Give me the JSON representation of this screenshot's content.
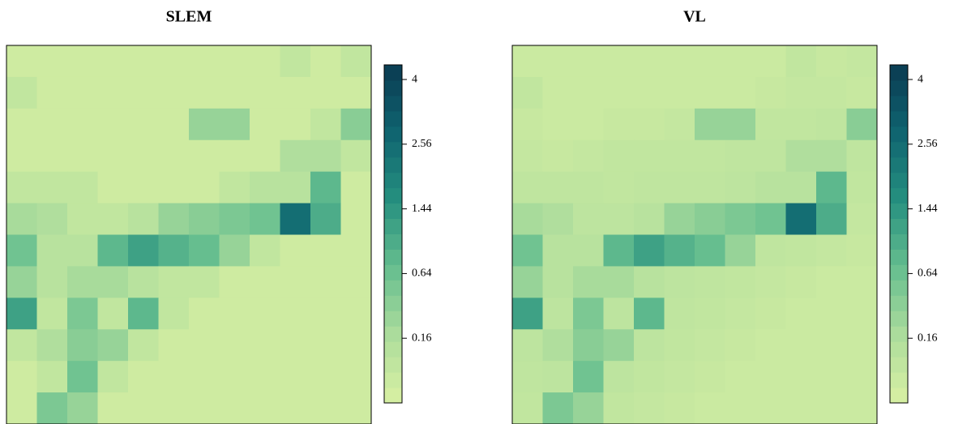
{
  "chart_data": [
    {
      "type": "heatmap",
      "title": "SLEM",
      "scale": "sqrt",
      "colors": [
        "#d9f0a3",
        "#addd9c",
        "#66be8f",
        "#26907f",
        "#0f6470",
        "#0b3b52"
      ],
      "clim": [
        0,
        4.37
      ],
      "cticks": [
        0.16,
        0.64,
        1.44,
        2.56,
        4
      ],
      "z": [
        [
          0.01,
          0.01,
          0.01,
          0.01,
          0.01,
          0.01,
          0.01,
          0.01,
          0.01,
          0.05,
          0.01,
          0.05
        ],
        [
          0.05,
          0.01,
          0.01,
          0.01,
          0.01,
          0.01,
          0.01,
          0.01,
          0.01,
          0.01,
          0.01,
          0.01
        ],
        [
          0.01,
          0.01,
          0.01,
          0.01,
          0.01,
          0.01,
          0.3,
          0.3,
          0.01,
          0.01,
          0.05,
          0.4
        ],
        [
          0.01,
          0.01,
          0.01,
          0.01,
          0.01,
          0.01,
          0.01,
          0.01,
          0.01,
          0.15,
          0.15,
          0.05
        ],
        [
          0.05,
          0.05,
          0.05,
          0.01,
          0.01,
          0.01,
          0.01,
          0.05,
          0.1,
          0.1,
          0.8,
          0.01
        ],
        [
          0.2,
          0.15,
          0.05,
          0.05,
          0.1,
          0.3,
          0.4,
          0.5,
          0.6,
          2.5,
          1.0,
          0.01
        ],
        [
          0.6,
          0.1,
          0.1,
          0.8,
          1.2,
          0.9,
          0.7,
          0.3,
          0.05,
          0.01,
          0.01,
          0.01
        ],
        [
          0.3,
          0.1,
          0.2,
          0.2,
          0.1,
          0.05,
          0.05,
          0.01,
          0.01,
          0.01,
          0.01,
          0.01
        ],
        [
          1.2,
          0.05,
          0.5,
          0.05,
          0.8,
          0.05,
          0.01,
          0.01,
          0.01,
          0.01,
          0.01,
          0.01
        ],
        [
          0.05,
          0.15,
          0.4,
          0.3,
          0.05,
          0.01,
          0.01,
          0.01,
          0.01,
          0.01,
          0.01,
          0.01
        ],
        [
          0.01,
          0.05,
          0.6,
          0.05,
          0.01,
          0.01,
          0.01,
          0.01,
          0.01,
          0.01,
          0.01,
          0.01
        ],
        [
          0.01,
          0.5,
          0.3,
          0.01,
          0.01,
          0.01,
          0.01,
          0.01,
          0.01,
          0.01,
          0.01,
          0.01
        ]
      ]
    },
    {
      "type": "heatmap",
      "title": "VL",
      "scale": "sqrt",
      "colors": [
        "#d9f0a3",
        "#addd9c",
        "#66be8f",
        "#26907f",
        "#0f6470",
        "#0b3b52"
      ],
      "clim": [
        0,
        4.37
      ],
      "cticks": [
        0.16,
        0.64,
        1.44,
        2.56,
        4
      ],
      "z": [
        [
          0.02,
          0.02,
          0.02,
          0.02,
          0.02,
          0.02,
          0.02,
          0.02,
          0.02,
          0.05,
          0.03,
          0.04
        ],
        [
          0.05,
          0.02,
          0.02,
          0.02,
          0.02,
          0.02,
          0.02,
          0.02,
          0.03,
          0.04,
          0.04,
          0.03
        ],
        [
          0.03,
          0.02,
          0.02,
          0.03,
          0.03,
          0.04,
          0.3,
          0.3,
          0.05,
          0.05,
          0.06,
          0.4
        ],
        [
          0.04,
          0.03,
          0.04,
          0.05,
          0.05,
          0.05,
          0.05,
          0.06,
          0.06,
          0.15,
          0.15,
          0.06
        ],
        [
          0.06,
          0.06,
          0.06,
          0.05,
          0.06,
          0.06,
          0.06,
          0.07,
          0.1,
          0.1,
          0.8,
          0.05
        ],
        [
          0.2,
          0.15,
          0.07,
          0.07,
          0.1,
          0.3,
          0.4,
          0.5,
          0.6,
          2.5,
          1.0,
          0.04
        ],
        [
          0.6,
          0.1,
          0.1,
          0.8,
          1.2,
          0.9,
          0.7,
          0.3,
          0.06,
          0.05,
          0.04,
          0.03
        ],
        [
          0.3,
          0.1,
          0.2,
          0.2,
          0.1,
          0.07,
          0.06,
          0.05,
          0.04,
          0.03,
          0.02,
          0.02
        ],
        [
          1.2,
          0.07,
          0.5,
          0.07,
          0.8,
          0.06,
          0.05,
          0.04,
          0.03,
          0.02,
          0.02,
          0.02
        ],
        [
          0.07,
          0.15,
          0.4,
          0.3,
          0.07,
          0.05,
          0.04,
          0.03,
          0.02,
          0.02,
          0.02,
          0.02
        ],
        [
          0.06,
          0.07,
          0.6,
          0.07,
          0.05,
          0.04,
          0.03,
          0.02,
          0.02,
          0.02,
          0.02,
          0.02
        ],
        [
          0.05,
          0.5,
          0.3,
          0.05,
          0.04,
          0.03,
          0.02,
          0.02,
          0.02,
          0.02,
          0.02,
          0.02
        ]
      ]
    }
  ]
}
